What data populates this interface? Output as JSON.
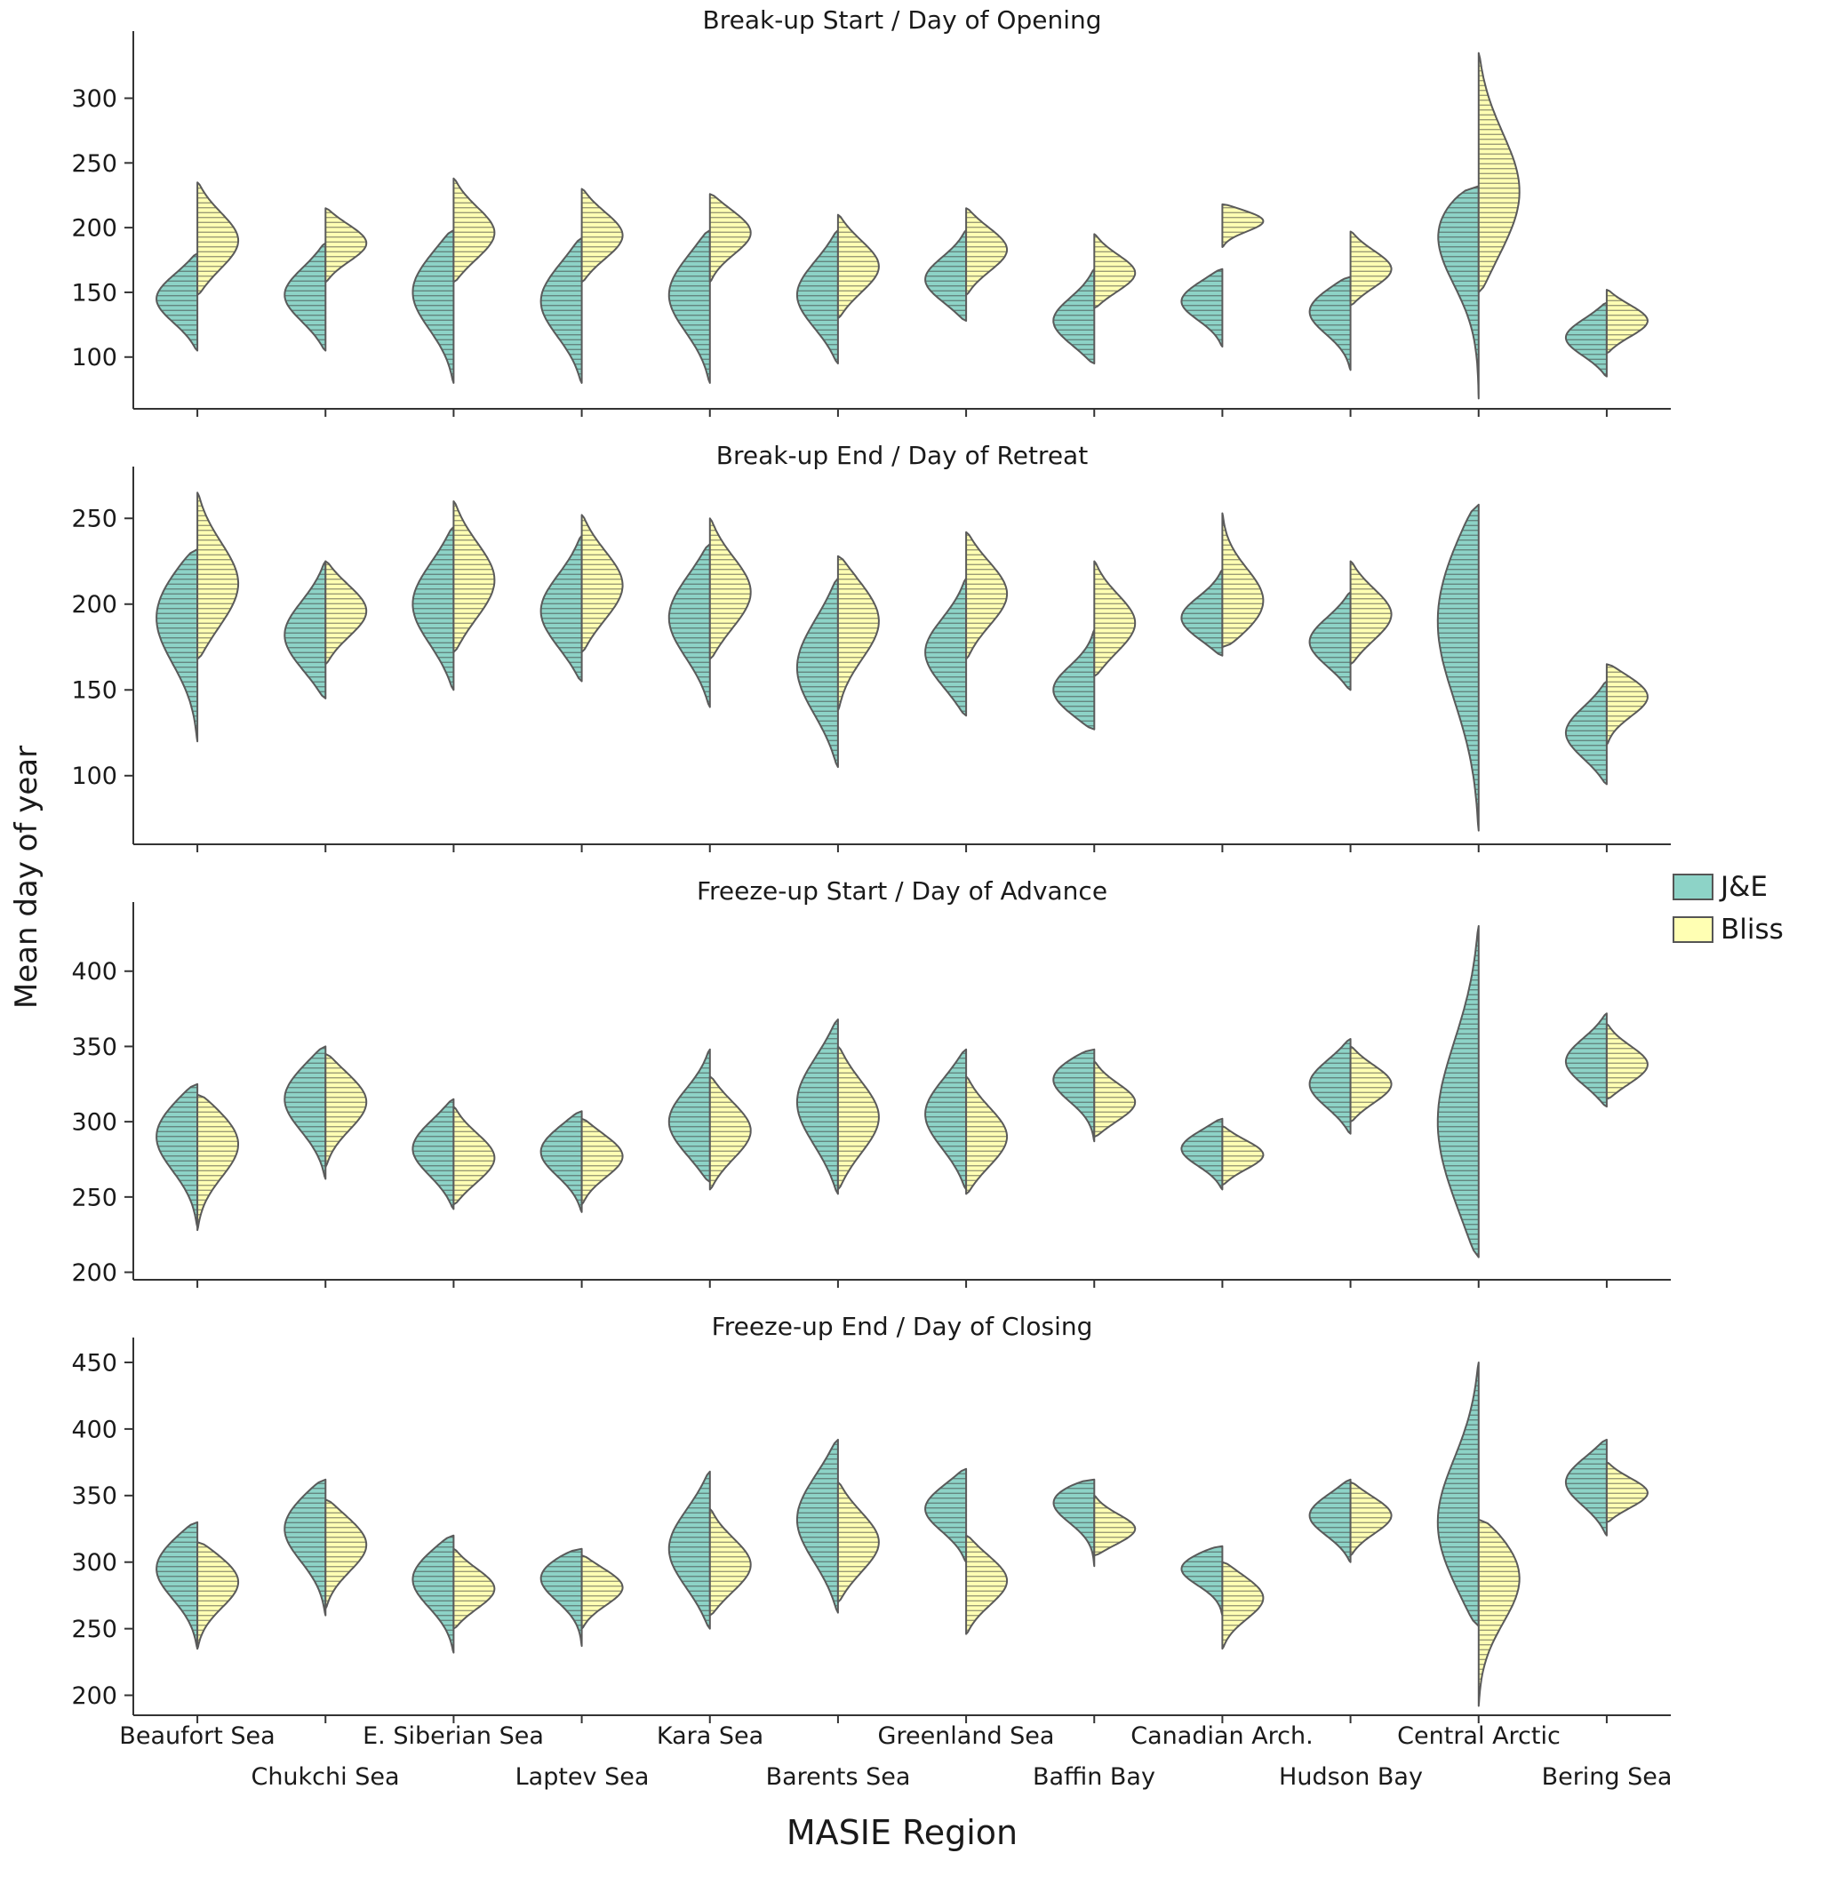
{
  "figure": {
    "ylabel": "Mean day of year",
    "xlabel": "MASIE Region",
    "legend": [
      {
        "label": "J&E",
        "color": "#8dd3c7"
      },
      {
        "label": "Bliss",
        "color": "#ffffb3"
      }
    ]
  },
  "chart_data": {
    "type": "violin",
    "note": "Split violin plots; left half = J&E (teal), right half = Bliss (yellow). Values are [peak, min, max] mean day of year estimated from the figure. null = series absent for that region.",
    "regions": [
      "Beaufort Sea",
      "Chukchi Sea",
      "E. Siberian Sea",
      "Laptev Sea",
      "Kara Sea",
      "Barents Sea",
      "Greenland Sea",
      "Baffin Bay",
      "Canadian Arch.",
      "Hudson Bay",
      "Central Arctic",
      "Bering Sea"
    ],
    "colors": {
      "je": "#8dd3c7",
      "bliss": "#ffffb3"
    },
    "panels": [
      {
        "title": "Break-up Start / Day of Opening",
        "ylim": [
          60,
          345
        ],
        "yticks": [
          100,
          150,
          200,
          250,
          300
        ],
        "je": [
          [
            145,
            105,
            180
          ],
          [
            148,
            105,
            188
          ],
          [
            150,
            80,
            198
          ],
          [
            143,
            80,
            192
          ],
          [
            148,
            80,
            198
          ],
          [
            148,
            95,
            198
          ],
          [
            160,
            128,
            198
          ],
          [
            128,
            95,
            168
          ],
          [
            143,
            108,
            168
          ],
          [
            135,
            90,
            162
          ],
          [
            195,
            68,
            232
          ],
          [
            115,
            85,
            142
          ]
        ],
        "bliss": [
          [
            190,
            148,
            235
          ],
          [
            188,
            158,
            215
          ],
          [
            196,
            158,
            238
          ],
          [
            194,
            158,
            230
          ],
          [
            196,
            158,
            226
          ],
          [
            170,
            130,
            210
          ],
          [
            183,
            148,
            215
          ],
          [
            165,
            138,
            195
          ],
          [
            205,
            185,
            218
          ],
          [
            168,
            140,
            197
          ],
          [
            228,
            150,
            335
          ],
          [
            128,
            103,
            152
          ]
        ]
      },
      {
        "title": "Break-up End / Day of Retreat",
        "ylim": [
          60,
          275
        ],
        "yticks": [
          100,
          150,
          200,
          250
        ],
        "je": [
          [
            192,
            120,
            232
          ],
          [
            182,
            145,
            225
          ],
          [
            200,
            150,
            245
          ],
          [
            196,
            155,
            240
          ],
          [
            192,
            140,
            235
          ],
          [
            163,
            105,
            215
          ],
          [
            172,
            135,
            215
          ],
          [
            150,
            127,
            185
          ],
          [
            192,
            170,
            220
          ],
          [
            178,
            150,
            207
          ],
          [
            190,
            68,
            258
          ],
          [
            125,
            95,
            155
          ]
        ],
        "bliss": [
          [
            212,
            168,
            265
          ],
          [
            196,
            165,
            225
          ],
          [
            214,
            172,
            260
          ],
          [
            211,
            172,
            252
          ],
          [
            207,
            168,
            250
          ],
          [
            190,
            138,
            228
          ],
          [
            206,
            168,
            242
          ],
          [
            189,
            158,
            225
          ],
          [
            202,
            175,
            253
          ],
          [
            194,
            165,
            225
          ],
          null,
          [
            146,
            118,
            165
          ]
        ]
      },
      {
        "title": "Freeze-up Start / Day of Advance",
        "ylim": [
          195,
          440
        ],
        "yticks": [
          200,
          250,
          300,
          350,
          400
        ],
        "je": [
          [
            290,
            230,
            325
          ],
          [
            315,
            262,
            350
          ],
          [
            282,
            242,
            315
          ],
          [
            280,
            240,
            307
          ],
          [
            300,
            260,
            348
          ],
          [
            313,
            252,
            368
          ],
          [
            305,
            255,
            348
          ],
          [
            328,
            287,
            348
          ],
          [
            282,
            255,
            302
          ],
          [
            325,
            292,
            355
          ],
          [
            300,
            210,
            430
          ],
          [
            340,
            310,
            372
          ]
        ],
        "bliss": [
          [
            285,
            228,
            318
          ],
          [
            313,
            270,
            345
          ],
          [
            276,
            245,
            310
          ],
          [
            277,
            245,
            302
          ],
          [
            294,
            255,
            330
          ],
          [
            303,
            255,
            350
          ],
          [
            290,
            252,
            330
          ],
          [
            313,
            290,
            340
          ],
          [
            278,
            258,
            297
          ],
          [
            325,
            300,
            350
          ],
          null,
          [
            338,
            315,
            365
          ]
        ]
      },
      {
        "title": "Freeze-up End / Day of Closing",
        "ylim": [
          185,
          462
        ],
        "yticks": [
          200,
          250,
          300,
          350,
          400,
          450
        ],
        "je": [
          [
            295,
            235,
            330
          ],
          [
            325,
            260,
            362
          ],
          [
            287,
            232,
            320
          ],
          [
            288,
            237,
            310
          ],
          [
            310,
            250,
            368
          ],
          [
            332,
            262,
            392
          ],
          [
            340,
            300,
            370
          ],
          [
            345,
            297,
            362
          ],
          [
            295,
            260,
            312
          ],
          [
            335,
            300,
            362
          ],
          [
            330,
            252,
            450
          ],
          [
            360,
            320,
            392
          ]
        ],
        "bliss": [
          [
            285,
            235,
            315
          ],
          [
            313,
            265,
            347
          ],
          [
            280,
            250,
            310
          ],
          [
            281,
            250,
            305
          ],
          [
            298,
            260,
            340
          ],
          [
            315,
            270,
            360
          ],
          [
            286,
            246,
            320
          ],
          [
            325,
            305,
            350
          ],
          [
            273,
            235,
            300
          ],
          [
            335,
            305,
            360
          ],
          [
            288,
            192,
            332
          ],
          [
            352,
            330,
            375
          ]
        ]
      }
    ]
  }
}
